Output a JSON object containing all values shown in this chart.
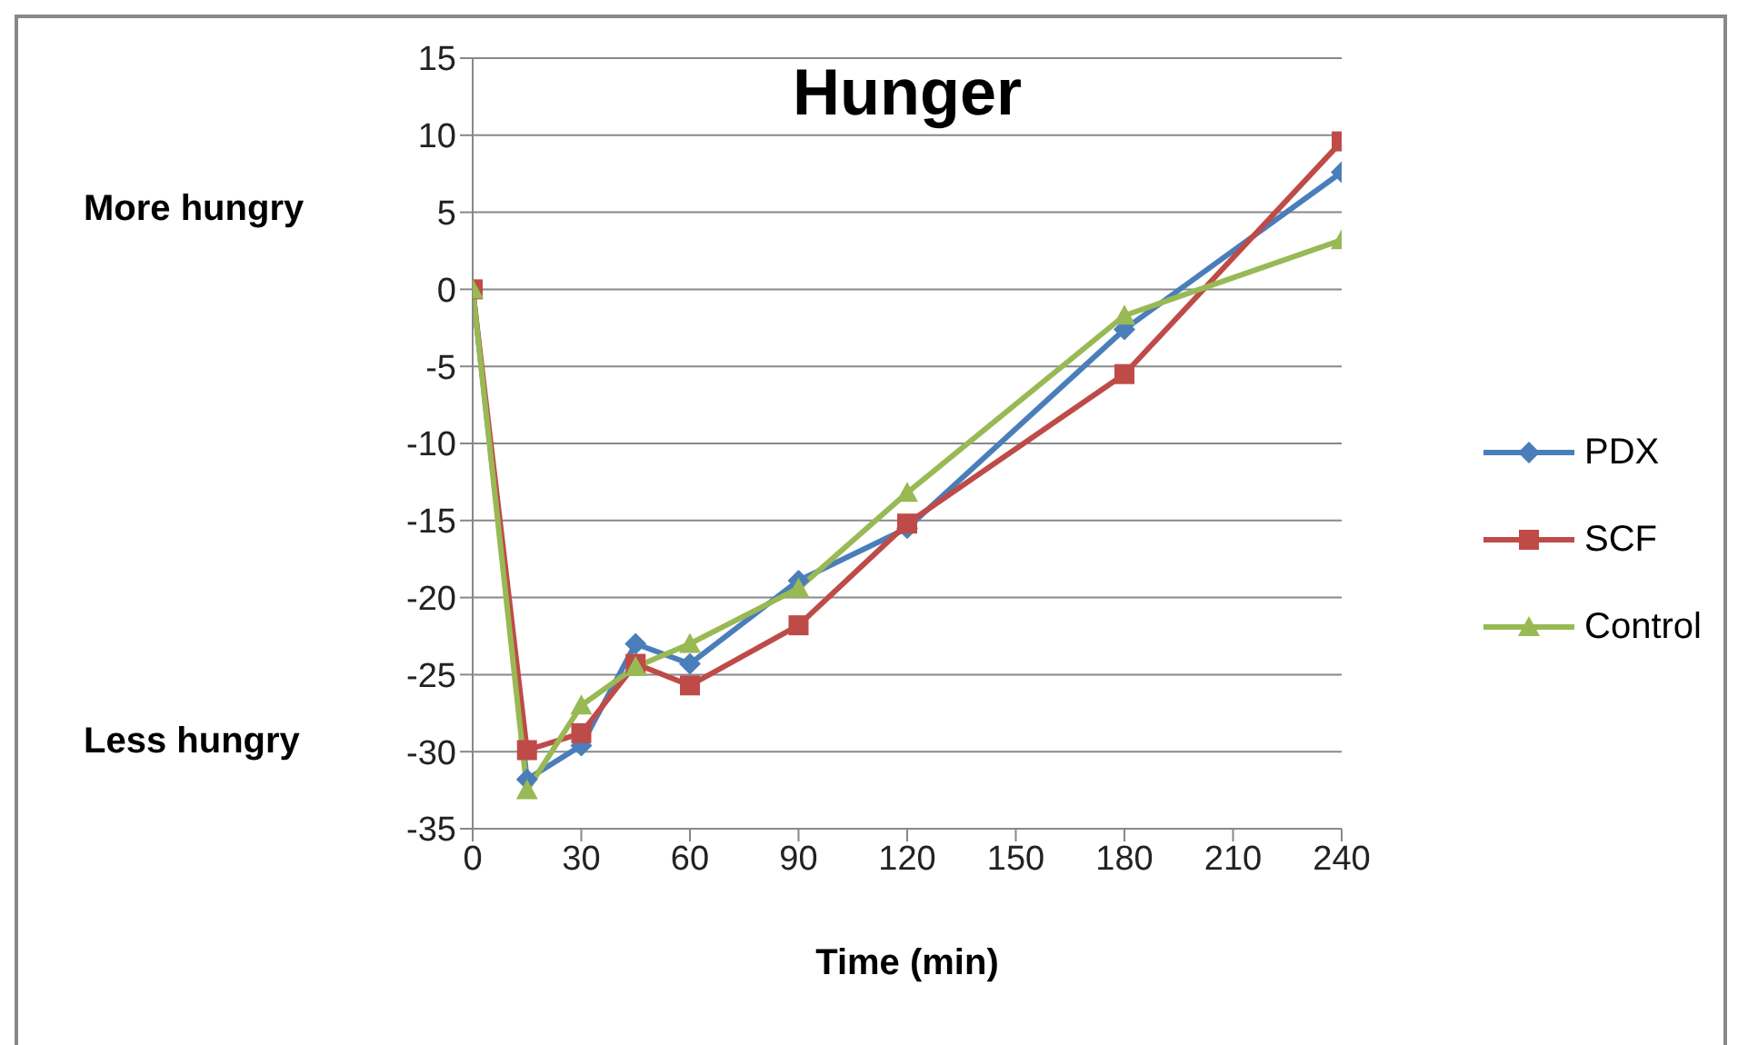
{
  "chart_data": {
    "type": "line",
    "title": "Hunger",
    "xlabel": "Time (min)",
    "annotations": [
      "More hungry",
      "Less hungry"
    ],
    "x": [
      0,
      15,
      30,
      45,
      60,
      90,
      120,
      180,
      240
    ],
    "series": [
      {
        "name": "PDX",
        "color": "#4a7ebb",
        "marker": "diamond",
        "values": [
          0,
          -31.8,
          -29.6,
          -23,
          -24.3,
          -18.9,
          -15.5,
          -2.6,
          7.6
        ]
      },
      {
        "name": "SCF",
        "color": "#be4b48",
        "marker": "square",
        "values": [
          0,
          -29.9,
          -28.8,
          -24.3,
          -25.7,
          -21.8,
          -15.2,
          -5.5,
          9.6
        ]
      },
      {
        "name": "Control",
        "color": "#98b954",
        "marker": "triangle",
        "values": [
          0,
          -32.5,
          -27,
          -24.5,
          -23,
          -19.4,
          -13.2,
          -1.7,
          3.2
        ]
      }
    ],
    "xlim": [
      0,
      240
    ],
    "xticks": [
      0,
      30,
      60,
      90,
      120,
      150,
      180,
      210,
      240
    ],
    "ylim": [
      -35,
      15
    ],
    "yticks": [
      -35,
      -30,
      -25,
      -20,
      -15,
      -10,
      -5,
      0,
      5,
      10,
      15
    ],
    "grid": "y",
    "legend": "right",
    "line_style": "solid"
  }
}
